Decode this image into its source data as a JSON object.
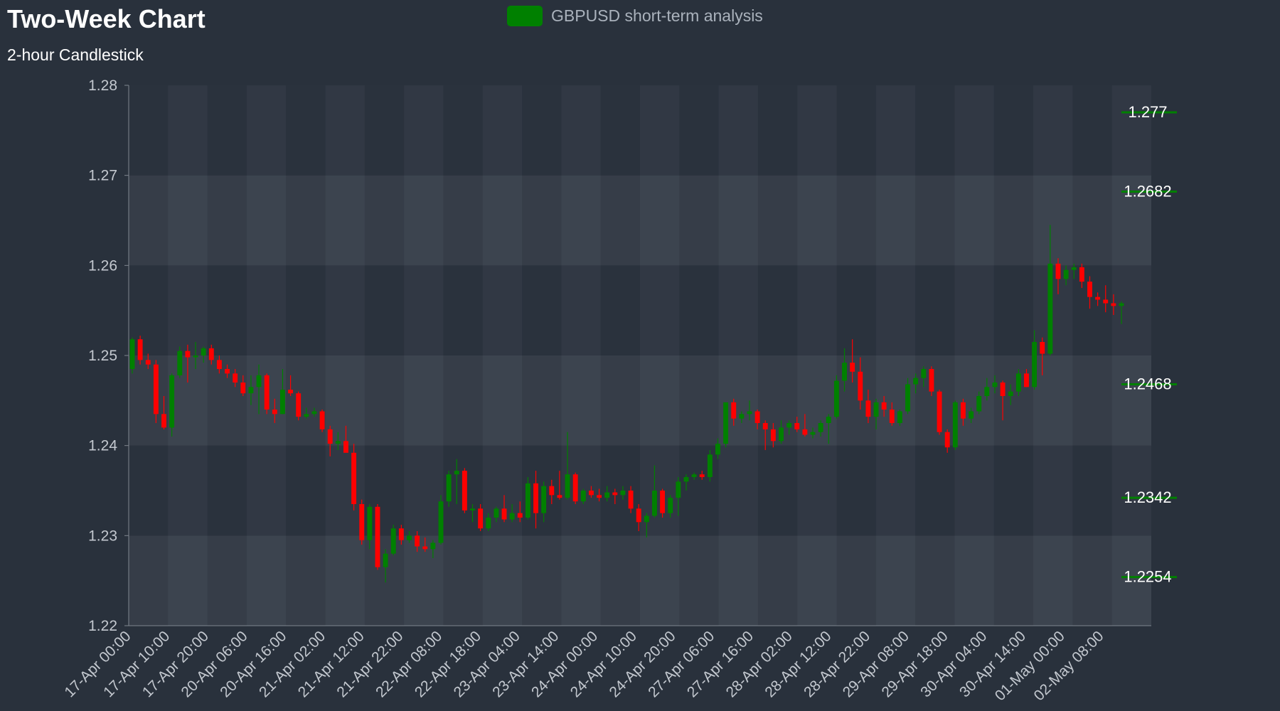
{
  "chart_data": {
    "type": "candlestick",
    "title": "Two-Week Chart",
    "subtitle": "2-hour Candlestick",
    "legend": {
      "label": "GBPUSD short-term analysis",
      "color": "#008000",
      "placement": "top-center"
    },
    "colors": {
      "up": "#008000",
      "down": "#ff0000",
      "background": "#29313c",
      "plot_band_light": "#3a424e",
      "plot_band_dark": "#2f3743"
    },
    "ylim": [
      1.22,
      1.28
    ],
    "yticks": [
      "1.22",
      "1.23",
      "1.24",
      "1.25",
      "1.26",
      "1.27",
      "1.28"
    ],
    "xtick_labels": [
      "17-Apr 00:00",
      "17-Apr 10:00",
      "17-Apr 20:00",
      "20-Apr 06:00",
      "20-Apr 16:00",
      "21-Apr 02:00",
      "21-Apr 12:00",
      "21-Apr 22:00",
      "22-Apr 08:00",
      "22-Apr 18:00",
      "23-Apr 04:00",
      "23-Apr 14:00",
      "24-Apr 00:00",
      "24-Apr 10:00",
      "24-Apr 20:00",
      "27-Apr 06:00",
      "27-Apr 16:00",
      "28-Apr 02:00",
      "28-Apr 12:00",
      "28-Apr 22:00",
      "29-Apr 08:00",
      "29-Apr 18:00",
      "30-Apr 04:00",
      "30-Apr 14:00",
      "01-May 00:00",
      "02-May 08:00"
    ],
    "levels": [
      {
        "label": "1.277",
        "value": 1.277
      },
      {
        "label": "1.2682",
        "value": 1.2682
      },
      {
        "label": "1.2468",
        "value": 1.2468
      },
      {
        "label": "1.2342",
        "value": 1.2342
      },
      {
        "label": "1.2254",
        "value": 1.2254
      }
    ],
    "candles_ohlc": [
      [
        1.2485,
        1.252,
        1.248,
        1.2518
      ],
      [
        1.2518,
        1.2522,
        1.249,
        1.2495
      ],
      [
        1.2495,
        1.2502,
        1.2485,
        1.249
      ],
      [
        1.249,
        1.2495,
        1.2425,
        1.2435
      ],
      [
        1.2435,
        1.2455,
        1.2418,
        1.242
      ],
      [
        1.242,
        1.248,
        1.241,
        1.2478
      ],
      [
        1.2478,
        1.251,
        1.2475,
        1.2505
      ],
      [
        1.2505,
        1.2512,
        1.247,
        1.2498
      ],
      [
        1.2498,
        1.2515,
        1.2485,
        1.25
      ],
      [
        1.25,
        1.251,
        1.2492,
        1.2508
      ],
      [
        1.2508,
        1.2512,
        1.249,
        1.2495
      ],
      [
        1.2495,
        1.25,
        1.248,
        1.2485
      ],
      [
        1.2485,
        1.249,
        1.2475,
        1.248
      ],
      [
        1.248,
        1.2485,
        1.2465,
        1.247
      ],
      [
        1.247,
        1.2478,
        1.2455,
        1.2458
      ],
      [
        1.2458,
        1.2478,
        1.2445,
        1.2465
      ],
      [
        1.2465,
        1.249,
        1.2435,
        1.2478
      ],
      [
        1.2478,
        1.248,
        1.2435,
        1.244
      ],
      [
        1.244,
        1.2452,
        1.2425,
        1.2435
      ],
      [
        1.2435,
        1.2485,
        1.2435,
        1.2462
      ],
      [
        1.2462,
        1.2478,
        1.2455,
        1.2458
      ],
      [
        1.2458,
        1.246,
        1.2428,
        1.2432
      ],
      [
        1.2432,
        1.2442,
        1.243,
        1.2435
      ],
      [
        1.2435,
        1.2442,
        1.2432,
        1.2438
      ],
      [
        1.2438,
        1.244,
        1.2415,
        1.2418
      ],
      [
        1.2418,
        1.2422,
        1.2388,
        1.2402
      ],
      [
        1.2402,
        1.2415,
        1.2395,
        1.2405
      ],
      [
        1.2405,
        1.2422,
        1.2398,
        1.2392
      ],
      [
        1.2392,
        1.2402,
        1.2328,
        1.2335
      ],
      [
        1.2335,
        1.234,
        1.229,
        1.2295
      ],
      [
        1.2295,
        1.2335,
        1.2285,
        1.2332
      ],
      [
        1.2332,
        1.2335,
        1.2262,
        1.2265
      ],
      [
        1.2265,
        1.2285,
        1.2248,
        1.228
      ],
      [
        1.228,
        1.2312,
        1.2278,
        1.2308
      ],
      [
        1.2308,
        1.2312,
        1.229,
        1.2295
      ],
      [
        1.2295,
        1.2305,
        1.2292,
        1.23
      ],
      [
        1.23,
        1.2305,
        1.2282,
        1.2288
      ],
      [
        1.2288,
        1.2298,
        1.2282,
        1.2285
      ],
      [
        1.2285,
        1.2295,
        1.2275,
        1.2292
      ],
      [
        1.2292,
        1.2345,
        1.229,
        1.2338
      ],
      [
        1.2338,
        1.2372,
        1.2332,
        1.2368
      ],
      [
        1.2368,
        1.2385,
        1.2335,
        1.2372
      ],
      [
        1.2372,
        1.2375,
        1.2325,
        1.2328
      ],
      [
        1.2328,
        1.2335,
        1.2315,
        1.233
      ],
      [
        1.233,
        1.2335,
        1.2305,
        1.2308
      ],
      [
        1.2308,
        1.2325,
        1.2305,
        1.232
      ],
      [
        1.232,
        1.2332,
        1.2315,
        1.233
      ],
      [
        1.233,
        1.2345,
        1.2315,
        1.2318
      ],
      [
        1.2318,
        1.2335,
        1.2315,
        1.2325
      ],
      [
        1.2325,
        1.2338,
        1.2315,
        1.232
      ],
      [
        1.232,
        1.2365,
        1.2318,
        1.2358
      ],
      [
        1.2358,
        1.2372,
        1.2308,
        1.2325
      ],
      [
        1.2325,
        1.236,
        1.2315,
        1.2355
      ],
      [
        1.2355,
        1.2362,
        1.2335,
        1.2345
      ],
      [
        1.2345,
        1.2372,
        1.234,
        1.2342
      ],
      [
        1.2342,
        1.2415,
        1.234,
        1.2368
      ],
      [
        1.2368,
        1.237,
        1.2335,
        1.2338
      ],
      [
        1.2338,
        1.2352,
        1.2335,
        1.235
      ],
      [
        1.235,
        1.2355,
        1.2342,
        1.2345
      ],
      [
        1.2345,
        1.2352,
        1.2338,
        1.2342
      ],
      [
        1.2342,
        1.2355,
        1.2338,
        1.2348
      ],
      [
        1.2348,
        1.2352,
        1.2335,
        1.2345
      ],
      [
        1.2345,
        1.2355,
        1.234,
        1.235
      ],
      [
        1.235,
        1.2355,
        1.2325,
        1.233
      ],
      [
        1.233,
        1.2335,
        1.2305,
        1.2315
      ],
      [
        1.2315,
        1.2325,
        1.2298,
        1.2322
      ],
      [
        1.2322,
        1.2378,
        1.232,
        1.235
      ],
      [
        1.235,
        1.2352,
        1.232,
        1.2325
      ],
      [
        1.2325,
        1.2345,
        1.232,
        1.2342
      ],
      [
        1.2342,
        1.2365,
        1.2322,
        1.236
      ],
      [
        1.236,
        1.2368,
        1.235,
        1.2365
      ],
      [
        1.2365,
        1.237,
        1.2362,
        1.2368
      ],
      [
        1.2368,
        1.2372,
        1.2362,
        1.2365
      ],
      [
        1.2365,
        1.2395,
        1.236,
        1.239
      ],
      [
        1.239,
        1.2408,
        1.2385,
        1.2402
      ],
      [
        1.2402,
        1.2445,
        1.2398,
        1.2448
      ],
      [
        1.2448,
        1.2452,
        1.2422,
        1.243
      ],
      [
        1.243,
        1.2438,
        1.2425,
        1.2435
      ],
      [
        1.2435,
        1.245,
        1.2428,
        1.2438
      ],
      [
        1.2438,
        1.244,
        1.2418,
        1.2425
      ],
      [
        1.2425,
        1.2428,
        1.2395,
        1.2418
      ],
      [
        1.2418,
        1.2425,
        1.2398,
        1.2405
      ],
      [
        1.2405,
        1.2428,
        1.2402,
        1.242
      ],
      [
        1.242,
        1.2428,
        1.2412,
        1.2425
      ],
      [
        1.2425,
        1.2432,
        1.2415,
        1.2418
      ],
      [
        1.2418,
        1.2435,
        1.241,
        1.2412
      ],
      [
        1.2412,
        1.242,
        1.2408,
        1.2415
      ],
      [
        1.2415,
        1.2428,
        1.241,
        1.2425
      ],
      [
        1.2425,
        1.2435,
        1.2402,
        1.2432
      ],
      [
        1.2432,
        1.2478,
        1.243,
        1.2472
      ],
      [
        1.2472,
        1.2508,
        1.246,
        1.2492
      ],
      [
        1.2492,
        1.2518,
        1.247,
        1.2482
      ],
      [
        1.2482,
        1.2498,
        1.244,
        1.245
      ],
      [
        1.245,
        1.2462,
        1.2425,
        1.2432
      ],
      [
        1.2432,
        1.2452,
        1.2418,
        1.2448
      ],
      [
        1.2448,
        1.2455,
        1.2432,
        1.244
      ],
      [
        1.244,
        1.2448,
        1.2422,
        1.2425
      ],
      [
        1.2425,
        1.244,
        1.2422,
        1.2438
      ],
      [
        1.2438,
        1.2475,
        1.2435,
        1.2468
      ],
      [
        1.2468,
        1.248,
        1.2458,
        1.2475
      ],
      [
        1.2475,
        1.2488,
        1.2465,
        1.2485
      ],
      [
        1.2485,
        1.2488,
        1.2455,
        1.246
      ],
      [
        1.246,
        1.2462,
        1.2412,
        1.2415
      ],
      [
        1.2415,
        1.2418,
        1.2392,
        1.2398
      ],
      [
        1.2398,
        1.245,
        1.2395,
        1.2448
      ],
      [
        1.2448,
        1.2452,
        1.2422,
        1.243
      ],
      [
        1.243,
        1.2442,
        1.2425,
        1.2438
      ],
      [
        1.2438,
        1.246,
        1.2435,
        1.2455
      ],
      [
        1.2455,
        1.2475,
        1.245,
        1.2465
      ],
      [
        1.2465,
        1.2478,
        1.2458,
        1.247
      ],
      [
        1.247,
        1.2472,
        1.2428,
        1.2455
      ],
      [
        1.2455,
        1.2468,
        1.2445,
        1.246
      ],
      [
        1.246,
        1.2485,
        1.2455,
        1.248
      ],
      [
        1.248,
        1.2485,
        1.2465,
        1.2465
      ],
      [
        1.2465,
        1.2528,
        1.2462,
        1.2515
      ],
      [
        1.2515,
        1.252,
        1.2478,
        1.2502
      ],
      [
        1.2502,
        1.2645,
        1.25,
        1.2602
      ],
      [
        1.2602,
        1.2608,
        1.2568,
        1.2585
      ],
      [
        1.2585,
        1.26,
        1.2578,
        1.2595
      ],
      [
        1.2595,
        1.2602,
        1.2585,
        1.2598
      ],
      [
        1.2598,
        1.2602,
        1.2575,
        1.2582
      ],
      [
        1.2582,
        1.2588,
        1.2552,
        1.2565
      ],
      [
        1.2565,
        1.257,
        1.2555,
        1.2562
      ],
      [
        1.2562,
        1.2578,
        1.2548,
        1.2558
      ],
      [
        1.2558,
        1.2568,
        1.2545,
        1.2555
      ],
      [
        1.2555,
        1.256,
        1.2535,
        1.2558
      ]
    ]
  }
}
